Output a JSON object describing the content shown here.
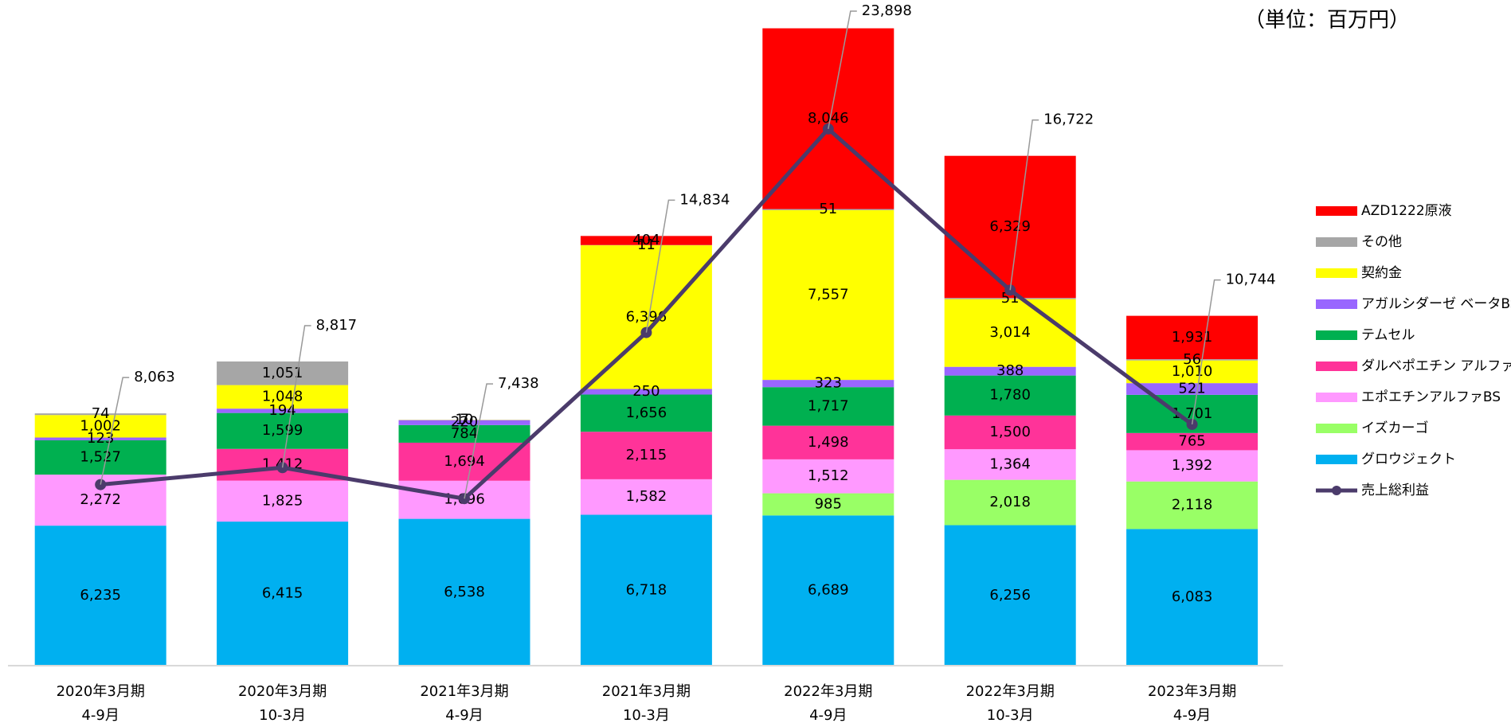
{
  "chart_data": {
    "type": "stacked-bar-line",
    "unit": "（単位：百万円）",
    "categories": [
      [
        "2020年3月期",
        "4-9月"
      ],
      [
        "2020年3月期",
        "10-3月"
      ],
      [
        "2021年3月期",
        "4-9月"
      ],
      [
        "2021年3月期",
        "10-3月"
      ],
      [
        "2022年3月期",
        "4-9月"
      ],
      [
        "2022年3月期",
        "10-3月"
      ],
      [
        "2023年3月期",
        "4-9月"
      ]
    ],
    "ylim": [
      0,
      29000
    ],
    "series": [
      {
        "name": "グロウジェクト",
        "color": "#00b0f0",
        "values": [
          6235,
          6415,
          6538,
          6718,
          6689,
          6256,
          6083
        ],
        "value_labels": [
          "6,235",
          "6,415",
          "6,538",
          "6,718",
          "6,689",
          "6,256",
          "6,083"
        ]
      },
      {
        "name": "イズカーゴ",
        "color": "#99ff66",
        "values": [
          null,
          null,
          null,
          null,
          985,
          2018,
          2118
        ],
        "value_labels": [
          null,
          null,
          null,
          null,
          "985",
          "2,018",
          "2,118"
        ]
      },
      {
        "name": "エポエチンアルファBS",
        "color": "#ff99ff",
        "values": [
          2272,
          1825,
          1696,
          1582,
          1512,
          1364,
          1392
        ],
        "value_labels": [
          "2,272",
          "1,825",
          "1,696",
          "1,582",
          "1,512",
          "1,364",
          "1,392"
        ]
      },
      {
        "name": "ダルベポエチン アルファBS",
        "color": "#ff3399",
        "values": [
          null,
          1412,
          1694,
          2115,
          1498,
          1500,
          765
        ],
        "value_labels": [
          null,
          "1,412",
          "1,694",
          "2,115",
          "1,498",
          "1,500",
          "765"
        ]
      },
      {
        "name": "テムセル",
        "color": "#00b050",
        "values": [
          1527,
          1599,
          784,
          1656,
          1717,
          1780,
          1701
        ],
        "value_labels": [
          "1,527",
          "1,599",
          "784",
          "1,656",
          "1,717",
          "1,780",
          "1,701"
        ]
      },
      {
        "name": "アガルシダーゼ ベータBS",
        "color": "#9966ff",
        "values": [
          123,
          194,
          220,
          250,
          323,
          388,
          521
        ],
        "value_labels": [
          "123",
          "194",
          "220",
          "250",
          "323",
          "388",
          "521"
        ]
      },
      {
        "name": "契約金",
        "color": "#ffff00",
        "values": [
          1002,
          1048,
          10,
          6396,
          7557,
          3014,
          1010
        ],
        "value_labels": [
          "1,002",
          "1,048",
          "10",
          "6,396",
          "7,557",
          "3,014",
          "1,010"
        ]
      },
      {
        "name": "その他",
        "color": "#a6a6a6",
        "values": [
          74,
          1051,
          7,
          11,
          51,
          51,
          56
        ],
        "value_labels": [
          "74",
          "1,051",
          "7",
          "11",
          "51",
          "51",
          "56"
        ]
      },
      {
        "name": "AZD1222原液",
        "color": "#ff0000",
        "values": [
          null,
          null,
          null,
          404,
          8046,
          6329,
          1931
        ],
        "value_labels": [
          null,
          null,
          null,
          "404",
          "8,046",
          "6,329",
          "1,931"
        ]
      }
    ],
    "line": {
      "name": "売上総利益",
      "color": "#4b3b6b",
      "values": [
        8063,
        8817,
        7438,
        14834,
        23898,
        16722,
        10744
      ],
      "value_labels": [
        "8,063",
        "8,817",
        "7,438",
        "14,834",
        "23,898",
        "16,722",
        "10,744"
      ]
    },
    "legend": "right"
  }
}
